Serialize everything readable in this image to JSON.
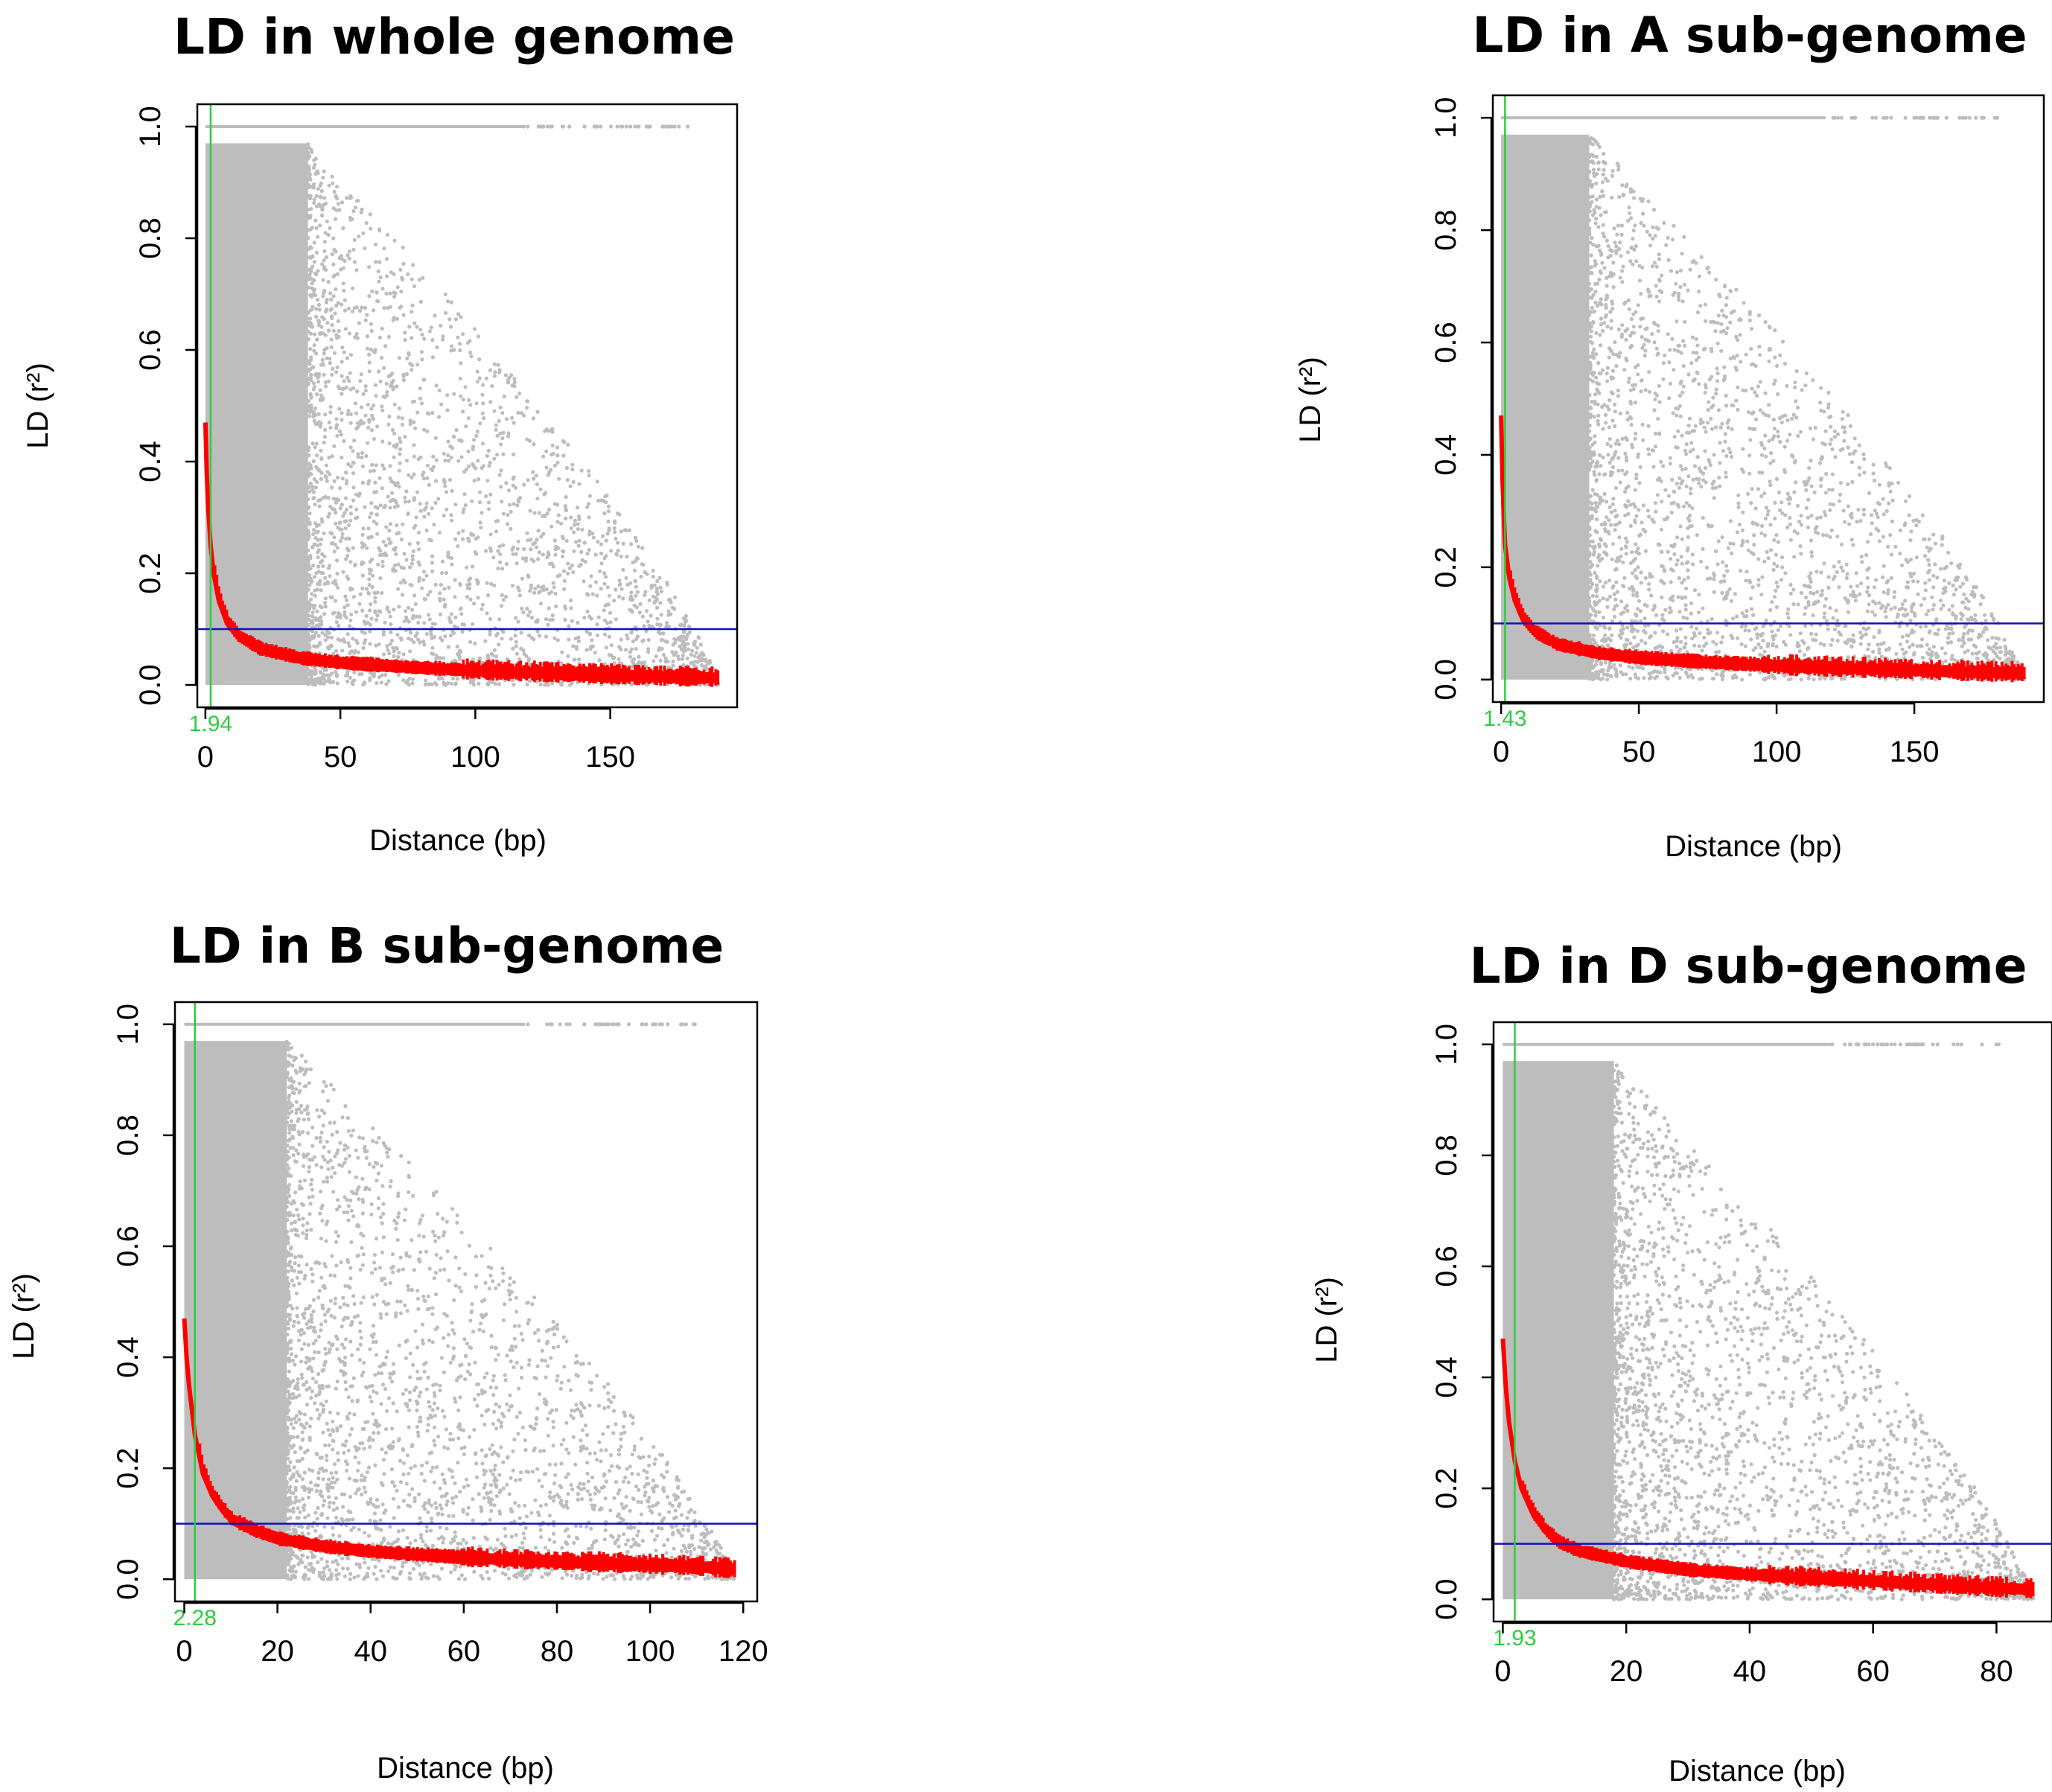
{
  "chart_data": [
    {
      "type": "scatter",
      "title": "LD in whole genome",
      "xlabel": "Distance (bp)",
      "ylabel": "LD (r²)",
      "xlim": [
        -3,
        197
      ],
      "ylim": [
        -0.04,
        1.04
      ],
      "xticks": [
        0,
        50,
        100,
        150
      ],
      "yticks": [
        0.0,
        0.2,
        0.4,
        0.6,
        0.8,
        1.0
      ],
      "ld_decay_distance": 1.94,
      "ld_decay_label": "1.94",
      "threshold_r2": 0.1,
      "max_distance": 190,
      "dense_extent": 38,
      "decay_curve": [
        [
          0,
          0.47
        ],
        [
          0.5,
          0.38
        ],
        [
          1,
          0.32
        ],
        [
          1.94,
          0.25
        ],
        [
          3,
          0.2
        ],
        [
          5,
          0.15
        ],
        [
          8,
          0.11
        ],
        [
          12,
          0.085
        ],
        [
          20,
          0.062
        ],
        [
          35,
          0.045
        ],
        [
          50,
          0.037
        ],
        [
          75,
          0.029
        ],
        [
          100,
          0.023
        ],
        [
          125,
          0.019
        ],
        [
          150,
          0.015
        ],
        [
          170,
          0.012
        ],
        [
          190,
          0.01
        ]
      ],
      "colors": {
        "points": "#bdbdbd",
        "curve": "#ff0000",
        "threshold": "#1010c0",
        "ld_line": "#2ecc40"
      }
    },
    {
      "type": "scatter",
      "title": "LD in A sub-genome",
      "xlabel": "Distance (bp)",
      "ylabel": "LD (r²)",
      "xlim": [
        -3,
        197
      ],
      "ylim": [
        -0.04,
        1.04
      ],
      "xticks": [
        0,
        50,
        100,
        150
      ],
      "yticks": [
        0.0,
        0.2,
        0.4,
        0.6,
        0.8,
        1.0
      ],
      "ld_decay_distance": 1.43,
      "ld_decay_label": "1.43",
      "threshold_r2": 0.1,
      "max_distance": 190,
      "dense_extent": 32,
      "decay_curve": [
        [
          0,
          0.47
        ],
        [
          0.5,
          0.36
        ],
        [
          1,
          0.29
        ],
        [
          1.43,
          0.24
        ],
        [
          3,
          0.18
        ],
        [
          5,
          0.14
        ],
        [
          8,
          0.105
        ],
        [
          12,
          0.082
        ],
        [
          20,
          0.06
        ],
        [
          35,
          0.044
        ],
        [
          50,
          0.036
        ],
        [
          75,
          0.028
        ],
        [
          100,
          0.022
        ],
        [
          125,
          0.018
        ],
        [
          150,
          0.014
        ],
        [
          170,
          0.011
        ],
        [
          190,
          0.009
        ]
      ],
      "colors": {
        "points": "#bdbdbd",
        "curve": "#ff0000",
        "threshold": "#1010c0",
        "ld_line": "#2ecc40"
      }
    },
    {
      "type": "scatter",
      "title": "LD in B sub-genome",
      "xlabel": "Distance (bp)",
      "ylabel": "LD (r²)",
      "xlim": [
        -2,
        123
      ],
      "ylim": [
        -0.04,
        1.04
      ],
      "xticks": [
        0,
        20,
        40,
        60,
        80,
        100,
        120
      ],
      "yticks": [
        0.0,
        0.2,
        0.4,
        0.6,
        0.8,
        1.0
      ],
      "ld_decay_distance": 2.28,
      "ld_decay_label": "2.28",
      "threshold_r2": 0.1,
      "max_distance": 118,
      "dense_extent": 22,
      "decay_curve": [
        [
          0,
          0.47
        ],
        [
          0.5,
          0.4
        ],
        [
          1,
          0.35
        ],
        [
          2.28,
          0.26
        ],
        [
          4,
          0.19
        ],
        [
          6,
          0.15
        ],
        [
          8,
          0.125
        ],
        [
          10,
          0.105
        ],
        [
          15,
          0.085
        ],
        [
          20,
          0.07
        ],
        [
          30,
          0.056
        ],
        [
          40,
          0.047
        ],
        [
          60,
          0.036
        ],
        [
          80,
          0.029
        ],
        [
          100,
          0.023
        ],
        [
          110,
          0.02
        ],
        [
          118,
          0.015
        ]
      ],
      "colors": {
        "points": "#bdbdbd",
        "curve": "#ff0000",
        "threshold": "#1010c0",
        "ld_line": "#2ecc40"
      }
    },
    {
      "type": "scatter",
      "title": "LD in D sub-genome",
      "xlabel": "Distance (bp)",
      "ylabel": "LD (r²)",
      "xlim": [
        -1.5,
        89
      ],
      "ylim": [
        -0.04,
        1.04
      ],
      "xticks": [
        0,
        20,
        40,
        60,
        80
      ],
      "yticks": [
        0.0,
        0.2,
        0.4,
        0.6,
        0.8,
        1.0
      ],
      "ld_decay_distance": 1.93,
      "ld_decay_label": "1.93",
      "threshold_r2": 0.1,
      "max_distance": 86,
      "dense_extent": 18,
      "decay_curve": [
        [
          0,
          0.47
        ],
        [
          0.5,
          0.38
        ],
        [
          1,
          0.32
        ],
        [
          1.93,
          0.25
        ],
        [
          3,
          0.2
        ],
        [
          5,
          0.15
        ],
        [
          7,
          0.12
        ],
        [
          9,
          0.1
        ],
        [
          12,
          0.085
        ],
        [
          20,
          0.065
        ],
        [
          30,
          0.05
        ],
        [
          40,
          0.042
        ],
        [
          50,
          0.036
        ],
        [
          60,
          0.03
        ],
        [
          70,
          0.024
        ],
        [
          80,
          0.018
        ],
        [
          86,
          0.015
        ]
      ],
      "colors": {
        "points": "#bdbdbd",
        "curve": "#ff0000",
        "threshold": "#1010c0",
        "ld_line": "#2ecc40"
      }
    }
  ]
}
